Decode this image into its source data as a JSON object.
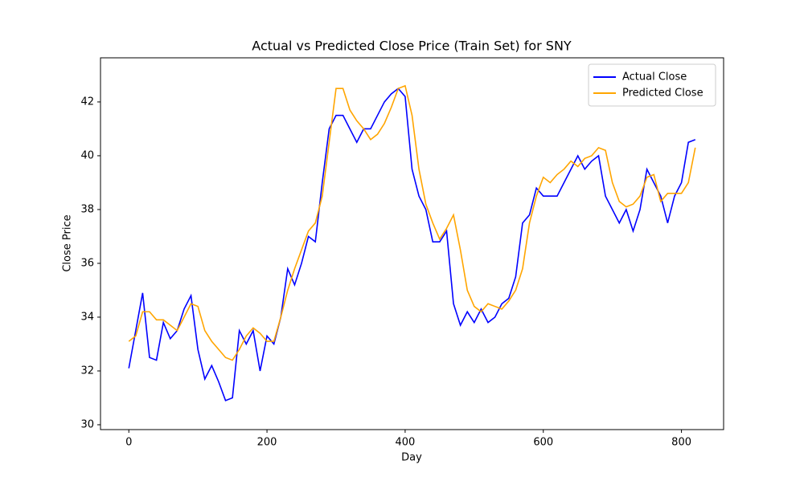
{
  "chart_data": {
    "type": "line",
    "title": "Actual vs Predicted Close Price (Train Set) for SNY",
    "x_label": "Day",
    "y_label": "Close Price",
    "x": [
      0,
      10,
      20,
      30,
      40,
      50,
      60,
      70,
      80,
      90,
      100,
      110,
      120,
      130,
      140,
      150,
      160,
      170,
      180,
      190,
      200,
      210,
      220,
      230,
      240,
      250,
      260,
      270,
      280,
      290,
      300,
      310,
      320,
      330,
      340,
      350,
      360,
      370,
      380,
      390,
      400,
      410,
      420,
      430,
      440,
      450,
      460,
      470,
      480,
      490,
      500,
      510,
      520,
      530,
      540,
      550,
      560,
      570,
      580,
      590,
      600,
      610,
      620,
      630,
      640,
      650,
      660,
      670,
      680,
      690,
      700,
      710,
      720,
      730,
      740,
      750,
      760,
      770,
      780,
      790,
      800,
      810,
      820
    ],
    "series": [
      {
        "name": "Actual Close",
        "color": "#0000ff",
        "values": [
          32.1,
          33.5,
          34.9,
          32.5,
          32.4,
          33.8,
          33.2,
          33.5,
          34.3,
          34.8,
          32.8,
          31.7,
          32.2,
          31.6,
          30.9,
          31.0,
          33.5,
          33.0,
          33.5,
          32.0,
          33.3,
          33.0,
          34.0,
          35.8,
          35.2,
          36.0,
          37.0,
          36.8,
          39.0,
          41.0,
          41.5,
          41.5,
          41.0,
          40.5,
          41.0,
          41.0,
          41.5,
          42.0,
          42.3,
          42.5,
          42.2,
          39.5,
          38.5,
          38.0,
          36.8,
          36.8,
          37.2,
          34.5,
          33.7,
          34.2,
          33.8,
          34.3,
          33.8,
          34.0,
          34.5,
          34.7,
          35.5,
          37.5,
          37.8,
          38.8,
          38.5,
          38.5,
          38.5,
          39.0,
          39.5,
          40.0,
          39.5,
          39.8,
          40.0,
          38.5,
          38.0,
          37.5,
          38.0,
          37.2,
          38.0,
          39.5,
          39.0,
          38.5,
          37.5,
          38.5,
          39.0,
          40.5,
          40.6
        ]
      },
      {
        "name": "Predicted Close",
        "color": "#ffa500",
        "values": [
          33.1,
          33.3,
          34.2,
          34.2,
          33.9,
          33.9,
          33.7,
          33.5,
          34.0,
          34.5,
          34.4,
          33.5,
          33.1,
          32.8,
          32.5,
          32.4,
          32.8,
          33.3,
          33.6,
          33.4,
          33.1,
          33.1,
          34.0,
          35.0,
          35.8,
          36.5,
          37.2,
          37.5,
          38.5,
          40.5,
          42.5,
          42.5,
          41.7,
          41.3,
          41.0,
          40.6,
          40.8,
          41.2,
          41.8,
          42.5,
          42.6,
          41.5,
          39.5,
          38.2,
          37.5,
          36.9,
          37.3,
          37.8,
          36.5,
          35.0,
          34.4,
          34.2,
          34.5,
          34.4,
          34.3,
          34.6,
          35.0,
          35.8,
          37.5,
          38.5,
          39.2,
          39.0,
          39.3,
          39.5,
          39.8,
          39.6,
          39.9,
          40.0,
          40.3,
          40.2,
          39.0,
          38.3,
          38.1,
          38.2,
          38.5,
          39.2,
          39.3,
          38.3,
          38.6,
          38.6,
          38.6,
          39.0,
          40.3
        ]
      }
    ],
    "xlim": [
      -41,
      861
    ],
    "ylim": [
      29.82,
      43.64
    ],
    "xticks": [
      0,
      200,
      400,
      600,
      800
    ],
    "yticks": [
      30,
      32,
      34,
      36,
      38,
      40,
      42
    ],
    "legend": "upper right",
    "grid": false
  }
}
